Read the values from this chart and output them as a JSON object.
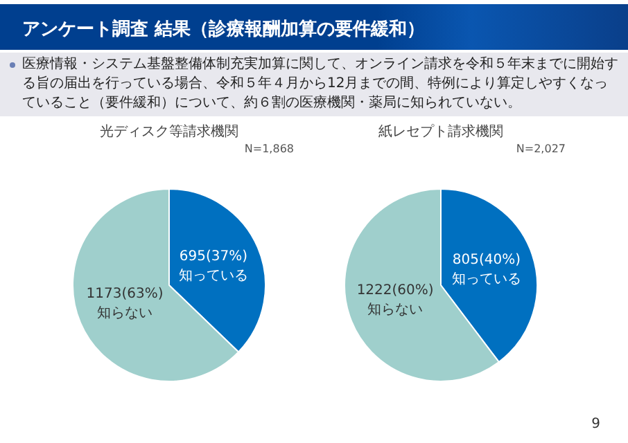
{
  "chart_data": [
    {
      "type": "other",
      "title": "アンケート調査 結果（診療報酬加算の要件緩和）",
      "annotations": [
        "医療情報・システム基盤整備体制充実加算に関して、オンライン請求を令和５年末までに開始する旨の届出を行っている場合、令和５年４月から12月までの間、特例により算定しやすくなっていること（要件緩和）について、約６割の医療機関・薬局に知られていない。",
        "9"
      ]
    },
    {
      "type": "pie",
      "title": "光ディスク等請求機関",
      "annotations": [
        "N=1,868"
      ],
      "categories": [
        "知っている",
        "知らない"
      ],
      "values": [
        695,
        1173
      ],
      "colors": [
        "#0070c0",
        "#9fcfcc"
      ],
      "value_labels": [
        "695(37%)",
        "1173(63%)"
      ],
      "legend": false
    },
    {
      "type": "pie",
      "title": "紙レセプト請求機関",
      "annotations": [
        "N=2,027"
      ],
      "categories": [
        "知っている",
        "知らない"
      ],
      "values": [
        805,
        1222
      ],
      "colors": [
        "#0070c0",
        "#9fcfcc"
      ],
      "value_labels": [
        "805(40%)",
        "1222(60%)"
      ],
      "legend": false
    }
  ]
}
